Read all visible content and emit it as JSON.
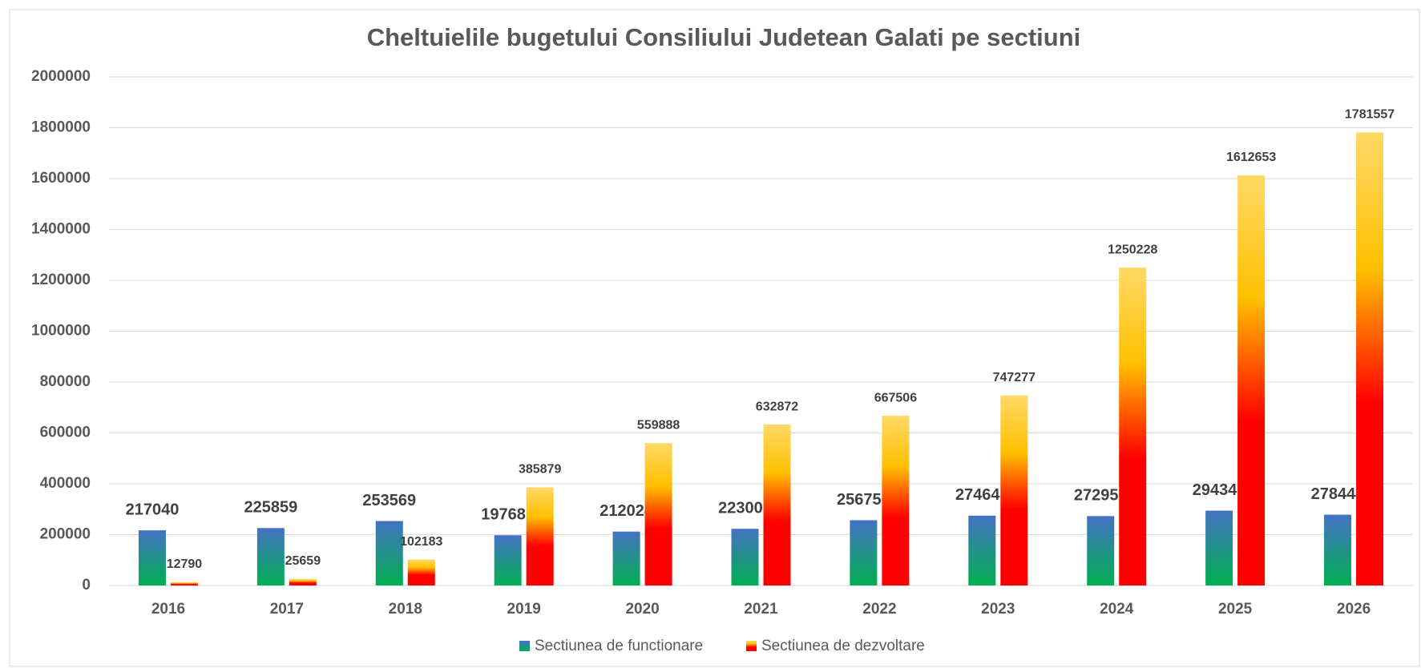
{
  "chart_data": {
    "type": "bar",
    "title": "Cheltuielile bugetului Consiliului Judetean Galati pe sectiuni",
    "categories": [
      "2016",
      "2017",
      "2018",
      "2019",
      "2020",
      "2021",
      "2022",
      "2023",
      "2024",
      "2025",
      "2026"
    ],
    "series": [
      {
        "name": "Sectiunea de functionare",
        "colors": [
          "#4472c4",
          "#00b050"
        ],
        "values": [
          217040,
          225859,
          253569,
          197681,
          212024,
          223000,
          256756,
          274645,
          272956,
          294347,
          278444
        ]
      },
      {
        "name": "Sectiunea de dezvoltare",
        "colors": [
          "#ffd966",
          "#ffc000",
          "#ff0000"
        ],
        "values": [
          12790,
          25659,
          102183,
          385879,
          559888,
          632872,
          667506,
          747277,
          1250228,
          1612653,
          1781557
        ]
      }
    ],
    "ylim": [
      0,
      2000000
    ],
    "yticks": [
      0,
      200000,
      400000,
      600000,
      800000,
      1000000,
      1200000,
      1400000,
      1600000,
      1800000,
      2000000
    ],
    "grid": true,
    "legend": "bottom"
  }
}
